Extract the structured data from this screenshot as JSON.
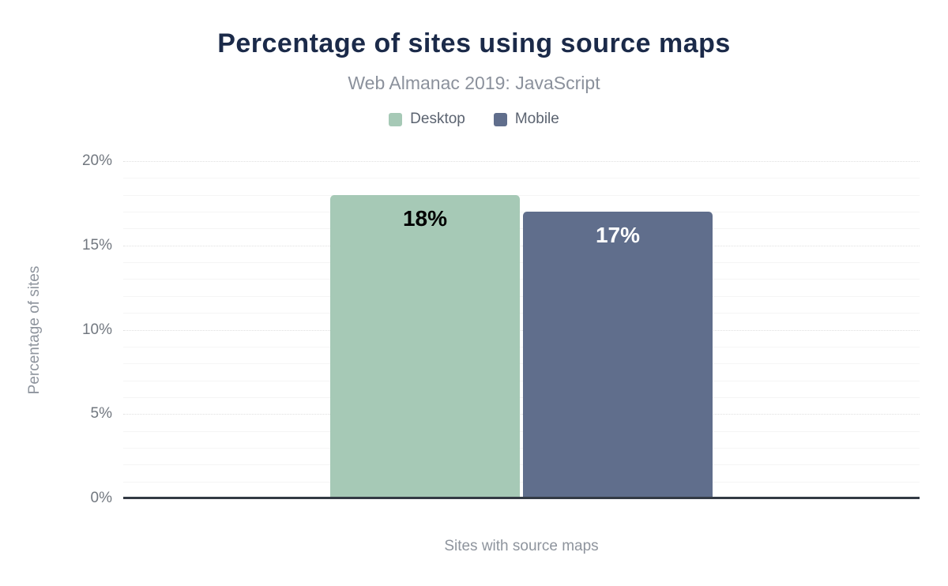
{
  "header": {
    "title": "Percentage of sites using source maps",
    "subtitle": "Web Almanac 2019: JavaScript",
    "title_color": "#1b2a49",
    "subtitle_color": "#8b919c"
  },
  "chart_data": {
    "type": "bar",
    "title": "Percentage of sites using source maps",
    "subtitle": "Web Almanac 2019: JavaScript",
    "categories": [
      "Sites with source maps"
    ],
    "series": [
      {
        "name": "Desktop",
        "values": [
          18
        ],
        "color": "#a6c9b6",
        "value_label_color": "#000000"
      },
      {
        "name": "Mobile",
        "values": [
          17
        ],
        "color": "#606e8c",
        "value_label_color": "#ffffff"
      }
    ],
    "value_labels": [
      [
        "18%"
      ],
      [
        "17%"
      ]
    ],
    "xlabel": "Sites with source maps",
    "ylabel": "Percentage of sites",
    "ylim": [
      0,
      20
    ],
    "y_major_step": 5,
    "y_minor_step": 1,
    "y_tick_labels": [
      "0%",
      "5%",
      "10%",
      "15%",
      "20%"
    ],
    "y_tick_suffix": "%",
    "grid": true,
    "legend_position": "top",
    "axis_line_color": "#333a44",
    "gridline_minor_color": "#f5f5f5",
    "gridline_major_color": "#e0e0e0"
  }
}
